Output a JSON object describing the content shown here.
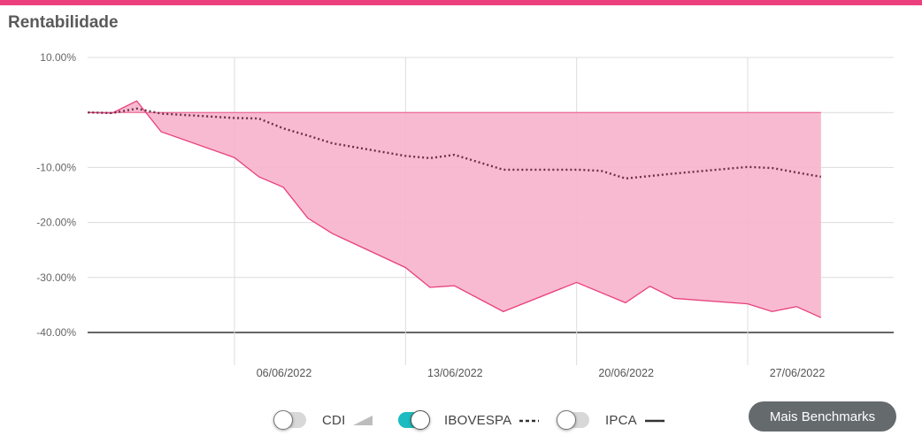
{
  "header": {
    "title": "Rentabilidade",
    "accent_color": "#ec3f7e"
  },
  "legend": {
    "items": [
      {
        "label": "CDI",
        "enabled": false,
        "swatch": "area-icon"
      },
      {
        "label": "IBOVESPA",
        "enabled": true,
        "swatch": "dashed-line-icon"
      },
      {
        "label": "IPCA",
        "enabled": false,
        "swatch": "solid-line-icon"
      }
    ],
    "toggle_on_color": "#1cbcc0"
  },
  "actions": {
    "more_benchmarks_label": "Mais Benchmarks"
  },
  "chart_data": {
    "type": "area",
    "y_tick_labels": [
      "10.00%",
      "",
      "-10.00%",
      "-20.00%",
      "-30.00%",
      "-40.00%"
    ],
    "y_ticks": [
      10,
      0,
      -10,
      -20,
      -30,
      -40
    ],
    "ylim": [
      -40,
      10
    ],
    "x_tick_labels": [
      "06/06/2022",
      "13/06/2022",
      "20/06/2022",
      "27/06/2022"
    ],
    "x_ticks": [
      "2022-06-06",
      "2022-06-13",
      "2022-06-20",
      "2022-06-27"
    ],
    "grid": true,
    "series": [
      {
        "type": "area",
        "color": "#e8407b",
        "fill": "#f7b3cc",
        "points": [
          [
            "2022-05-31",
            0.0
          ],
          [
            "2022-06-01",
            -0.1
          ],
          [
            "2022-06-02",
            2.1
          ],
          [
            "2022-06-03",
            -3.5
          ],
          [
            "2022-06-06",
            -8.2
          ],
          [
            "2022-06-07",
            -11.7
          ],
          [
            "2022-06-08",
            -13.6
          ],
          [
            "2022-06-09",
            -19.2
          ],
          [
            "2022-06-10",
            -22.0
          ],
          [
            "2022-06-13",
            -28.2
          ],
          [
            "2022-06-14",
            -31.8
          ],
          [
            "2022-06-15",
            -31.5
          ],
          [
            "2022-06-17",
            -36.2
          ],
          [
            "2022-06-20",
            -30.9
          ],
          [
            "2022-06-22",
            -34.6
          ],
          [
            "2022-06-23",
            -31.6
          ],
          [
            "2022-06-24",
            -33.8
          ],
          [
            "2022-06-27",
            -34.8
          ],
          [
            "2022-06-28",
            -36.2
          ],
          [
            "2022-06-29",
            -35.3
          ],
          [
            "2022-06-30",
            -37.3
          ]
        ]
      },
      {
        "type": "line",
        "style": "dotted",
        "color": "#6a3048",
        "points": [
          [
            "2022-05-31",
            0.0
          ],
          [
            "2022-06-01",
            -0.1
          ],
          [
            "2022-06-02",
            0.7
          ],
          [
            "2022-06-03",
            -0.2
          ],
          [
            "2022-06-06",
            -1.0
          ],
          [
            "2022-06-07",
            -1.1
          ],
          [
            "2022-06-08",
            -2.9
          ],
          [
            "2022-06-09",
            -4.2
          ],
          [
            "2022-06-10",
            -5.6
          ],
          [
            "2022-06-13",
            -7.9
          ],
          [
            "2022-06-14",
            -8.3
          ],
          [
            "2022-06-15",
            -7.7
          ],
          [
            "2022-06-17",
            -10.4
          ],
          [
            "2022-06-20",
            -10.4
          ],
          [
            "2022-06-21",
            -10.6
          ],
          [
            "2022-06-22",
            -12.0
          ],
          [
            "2022-06-24",
            -11.1
          ],
          [
            "2022-06-27",
            -9.9
          ],
          [
            "2022-06-28",
            -10.1
          ],
          [
            "2022-06-30",
            -11.7
          ]
        ]
      }
    ]
  }
}
